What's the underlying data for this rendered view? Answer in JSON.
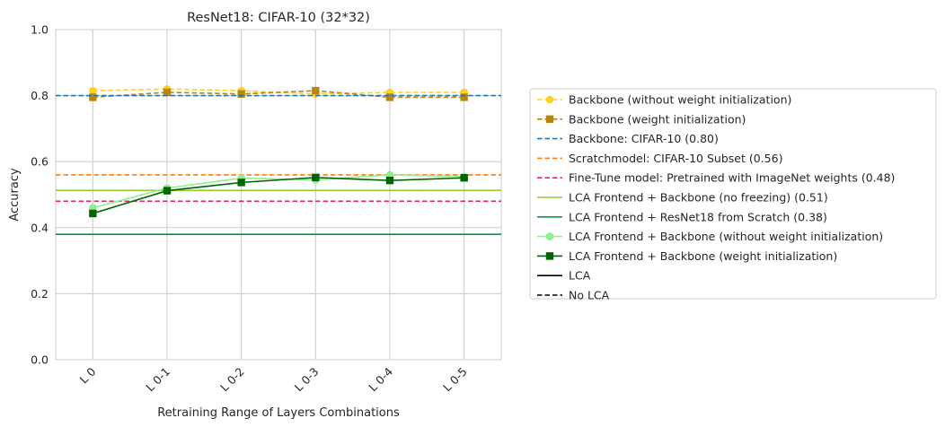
{
  "chart_data": {
    "type": "line",
    "title": "ResNet18: CIFAR-10 (32*32)",
    "xlabel": "Retraining Range of Layers Combinations",
    "ylabel": "Accuracy",
    "categories": [
      "L 0",
      "L 0-1",
      "L 0-2",
      "L 0-3",
      "L 0-4",
      "L 0-5"
    ],
    "ylim": [
      0,
      1
    ],
    "yticks": [
      "0.0",
      "0.2",
      "0.4",
      "0.6",
      "0.8",
      "1.0"
    ],
    "grid": true,
    "legend_position": "right",
    "series": [
      {
        "name": "Backbone (without weight initialization)",
        "kind": "line",
        "values": [
          0.815,
          0.82,
          0.815,
          0.805,
          0.81,
          0.81
        ],
        "color": "#ffd21f",
        "dash": true,
        "marker": "circle"
      },
      {
        "name": "Backbone (weight initialization)",
        "kind": "line",
        "values": [
          0.795,
          0.81,
          0.805,
          0.815,
          0.795,
          0.795
        ],
        "color": "#b8860b",
        "dash": true,
        "marker": "square"
      },
      {
        "name": "Backbone: CIFAR-10 (0.80)",
        "kind": "hline",
        "value": 0.8,
        "color": "#1f77b4",
        "dash": true
      },
      {
        "name": "Scratchmodel: CIFAR-10 Subset (0.56)",
        "kind": "hline",
        "value": 0.56,
        "color": "#ff7f0e",
        "dash": true
      },
      {
        "name": "Fine-Tune model: Pretrained with ImageNet weights (0.48)",
        "kind": "hline",
        "value": 0.48,
        "color": "#d62b6e",
        "dash": true
      },
      {
        "name": "LCA Frontend + Backbone (no freezing) (0.51)",
        "kind": "hline",
        "value": 0.513,
        "color": "#9acd32",
        "dash": false
      },
      {
        "name": "LCA Frontend + ResNet18 from Scratch (0.38)",
        "kind": "hline",
        "value": 0.38,
        "color": "#009944",
        "dash": false
      },
      {
        "name": "LCA Frontend + Backbone (without weight initialization)",
        "kind": "line",
        "values": [
          0.46,
          0.52,
          0.55,
          0.545,
          0.56,
          0.555
        ],
        "color": "#90ee90",
        "dash": false,
        "marker": "circle"
      },
      {
        "name": "LCA Frontend + Backbone (weight initialization)",
        "kind": "line",
        "values": [
          0.443,
          0.512,
          0.537,
          0.552,
          0.543,
          0.551
        ],
        "color": "#006400",
        "dash": false,
        "marker": "square"
      }
    ],
    "style_legend": [
      {
        "name": "LCA",
        "color": "#000000",
        "dash": false
      },
      {
        "name": "No LCA",
        "color": "#000000",
        "dash": true
      }
    ]
  }
}
